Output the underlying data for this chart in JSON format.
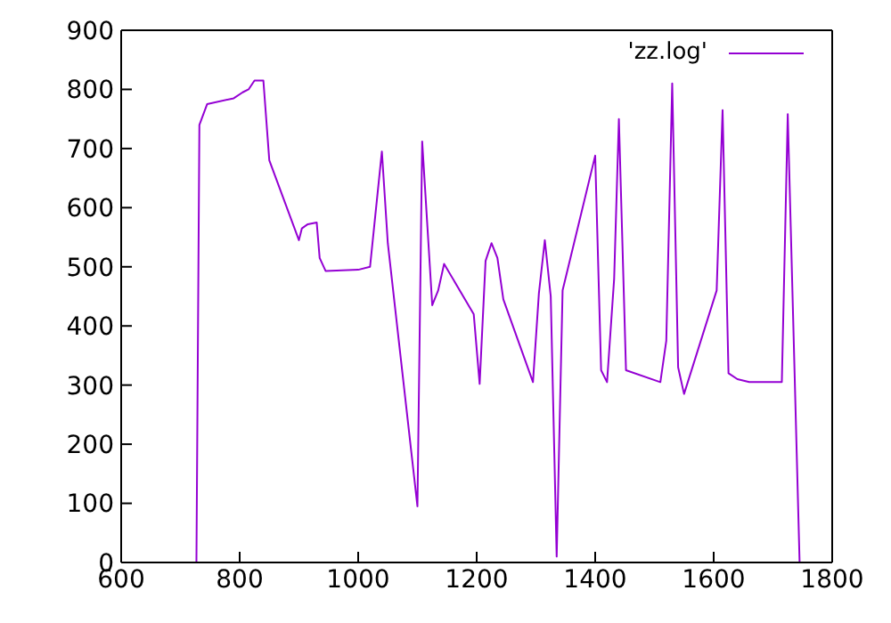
{
  "chart_data": {
    "type": "line",
    "series": [
      {
        "name": "'zz.log'",
        "color": "#9400d3",
        "x": [
          727,
          732,
          745,
          790,
          805,
          815,
          825,
          840,
          850,
          900,
          905,
          915,
          930,
          935,
          945,
          1000,
          1020,
          1040,
          1050,
          1100,
          1108,
          1125,
          1135,
          1145,
          1195,
          1205,
          1215,
          1225,
          1235,
          1245,
          1295,
          1305,
          1315,
          1325,
          1335,
          1345,
          1400,
          1410,
          1420,
          1432,
          1440,
          1452,
          1510,
          1520,
          1530,
          1540,
          1550,
          1605,
          1615,
          1625,
          1640,
          1660,
          1715,
          1725,
          1745
        ],
        "values": [
          0,
          740,
          775,
          785,
          795,
          800,
          815,
          815,
          680,
          545,
          565,
          572,
          575,
          515,
          493,
          495,
          500,
          695,
          540,
          95,
          712,
          435,
          460,
          505,
          420,
          302,
          510,
          540,
          515,
          445,
          305,
          455,
          545,
          450,
          10,
          460,
          688,
          325,
          305,
          480,
          750,
          325,
          305,
          375,
          810,
          330,
          285,
          460,
          765,
          320,
          310,
          305,
          305,
          758,
          0
        ]
      }
    ],
    "xlim": [
      600,
      1800
    ],
    "xticks": [
      600,
      800,
      1000,
      1200,
      1400,
      1600,
      1800
    ],
    "ylim": [
      0,
      900
    ],
    "yticks": [
      0,
      100,
      200,
      300,
      400,
      500,
      600,
      700,
      800,
      900
    ],
    "legend": "top right",
    "marker": "none",
    "line_style": "solid"
  }
}
